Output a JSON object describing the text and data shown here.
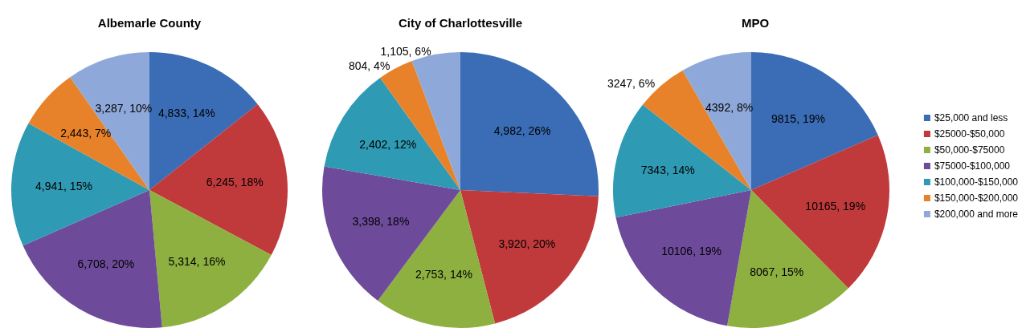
{
  "chart_data": [
    {
      "type": "pie",
      "title": "Albemarle County",
      "categories": [
        null,
        null,
        null,
        null,
        null,
        null,
        null
      ],
      "values": [
        4833,
        6245,
        5314,
        6708,
        4941,
        2443,
        3287
      ],
      "colors": [
        "#3a6db5",
        "#c0393b",
        "#8db040",
        "#6e4b9a",
        "#2f9ab3",
        "#e8822a",
        "#8ea9d9"
      ],
      "value_labels": [
        "4,833, 14%",
        "6,245, 18%",
        "5,314, 16%",
        "6,708, 20%",
        "4,941, 15%",
        "2,443, 7%",
        "3,287, 10%"
      ],
      "legend": false
    },
    {
      "type": "pie",
      "title": "City of Charlottesville",
      "categories": [
        null,
        null,
        null,
        null,
        null,
        null,
        null
      ],
      "values": [
        4982,
        3920,
        2753,
        3398,
        2402,
        804,
        1105
      ],
      "colors": [
        "#3a6db5",
        "#c0393b",
        "#8db040",
        "#6e4b9a",
        "#2f9ab3",
        "#e8822a",
        "#8ea9d9"
      ],
      "value_labels": [
        "4,982, 26%",
        "3,920, 20%",
        "2,753, 14%",
        "3,398, 18%",
        "2,402, 12%",
        "804, 4%",
        "1,105, 6%"
      ],
      "legend": false
    },
    {
      "type": "pie",
      "title": "MPO",
      "categories": [
        "$25,000 and less",
        "$25000-$50,000",
        "$50,000-$75000",
        "$75000-$100,000",
        "$100,000-$150,000",
        "$150,000-$200,000",
        "$200,000 and more"
      ],
      "values": [
        9815,
        10165,
        8067,
        10106,
        7343,
        3247,
        4392
      ],
      "colors": [
        "#3a6db5",
        "#c0393b",
        "#8db040",
        "#6e4b9a",
        "#2f9ab3",
        "#e8822a",
        "#8ea9d9"
      ],
      "value_labels": [
        "9815, 19%",
        "10165, 19%",
        "8067, 15%",
        "10106, 19%",
        "7343, 14%",
        "3247, 6%",
        "4392, 8%"
      ],
      "legend": "right"
    }
  ]
}
